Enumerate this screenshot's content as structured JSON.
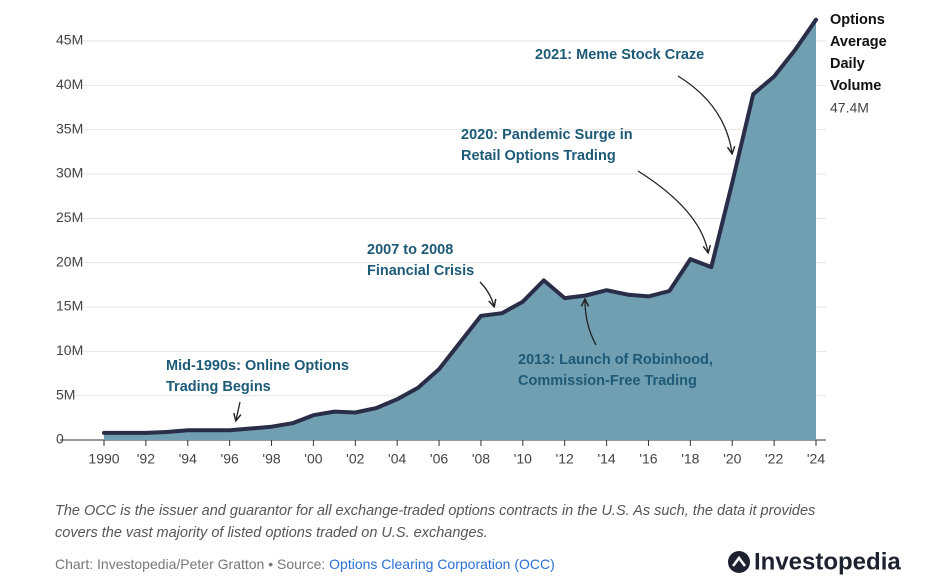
{
  "chart_data": {
    "type": "area",
    "x": [
      1990,
      1991,
      1992,
      1993,
      1994,
      1995,
      1996,
      1997,
      1998,
      1999,
      2000,
      2001,
      2002,
      2003,
      2004,
      2005,
      2006,
      2007,
      2008,
      2009,
      2010,
      2011,
      2012,
      2013,
      2014,
      2015,
      2016,
      2017,
      2018,
      2019,
      2020,
      2021,
      2022,
      2023,
      2024
    ],
    "series": [
      {
        "name": "Options Average Daily Volume",
        "color": "#6f9fb0",
        "line_color": "#2a2d47",
        "values": [
          0.8,
          0.8,
          0.8,
          0.9,
          1.1,
          1.1,
          1.1,
          1.3,
          1.5,
          1.9,
          2.8,
          3.2,
          3.1,
          3.6,
          4.6,
          5.9,
          8.0,
          11.0,
          14.0,
          14.3,
          15.6,
          18.0,
          16.0,
          16.3,
          16.9,
          16.4,
          16.2,
          16.8,
          20.4,
          19.5,
          29.0,
          39.0,
          41.0,
          44.0,
          47.4
        ],
        "value_labels": [
          null,
          null,
          null,
          null,
          null,
          null,
          null,
          null,
          null,
          null,
          null,
          null,
          null,
          null,
          null,
          null,
          null,
          null,
          null,
          null,
          null,
          null,
          null,
          null,
          null,
          null,
          null,
          null,
          null,
          null,
          null,
          null,
          null,
          null,
          "47.4M"
        ]
      }
    ],
    "xlim": [
      1990,
      2024
    ],
    "xticks": [
      1990,
      {
        "value": 1992,
        "label": "'92"
      },
      {
        "value": 1994,
        "label": "'94"
      },
      {
        "value": 1996,
        "label": "'96"
      },
      {
        "value": 1998,
        "label": "'98"
      },
      {
        "value": 2000,
        "label": "'00"
      },
      {
        "value": 2002,
        "label": "'02"
      },
      {
        "value": 2004,
        "label": "'04"
      },
      {
        "value": 2006,
        "label": "'06"
      },
      {
        "value": 2008,
        "label": "'08"
      },
      {
        "value": 2010,
        "label": "'10"
      },
      {
        "value": 2012,
        "label": "'12"
      },
      {
        "value": 2014,
        "label": "'14"
      },
      {
        "value": 2016,
        "label": "'16"
      },
      {
        "value": 2018,
        "label": "'18"
      },
      {
        "value": 2020,
        "label": "'20"
      },
      {
        "value": 2022,
        "label": "'22"
      },
      {
        "value": 2024,
        "label": "'24"
      }
    ],
    "ylim": [
      0,
      45
    ],
    "yticks": [
      0,
      {
        "value": 5,
        "label": "5M"
      },
      {
        "value": 10,
        "label": "10M"
      },
      {
        "value": 15,
        "label": "15M"
      },
      {
        "value": 20,
        "label": "20M"
      },
      {
        "value": 25,
        "label": "25M"
      },
      {
        "value": 30,
        "label": "30M"
      },
      {
        "value": 35,
        "label": "35M"
      },
      {
        "value": 40,
        "label": "40M"
      },
      {
        "value": 45,
        "label": "45M"
      }
    ],
    "grid": true,
    "series_label_lines": [
      "Options",
      "Average",
      "Daily",
      "Volume"
    ],
    "annotations": [
      {
        "lines": [
          "Mid-1990s: Online Options",
          "Trading Begins"
        ]
      },
      {
        "lines": [
          "2007 to 2008",
          "Financial Crisis"
        ]
      },
      {
        "lines": [
          "2013: Launch of Robinhood,",
          "Commission-Free Trading"
        ]
      },
      {
        "lines": [
          "2020: Pandemic Surge in",
          "Retail Options Trading"
        ]
      },
      {
        "lines": [
          "2021: Meme Stock Craze"
        ]
      }
    ],
    "footnote_lines": [
      "The OCC is the issuer and guarantor for all exchange-traded options contracts in the U.S. As such, the data it provides",
      "covers the vast majority of listed options traded on U.S. exchanges."
    ],
    "source_prefix": "Chart: Investopedia/Peter Gratton • Source: ",
    "source_link": "Options Clearing Corporation (OCC)",
    "brand": "Investopedia"
  }
}
